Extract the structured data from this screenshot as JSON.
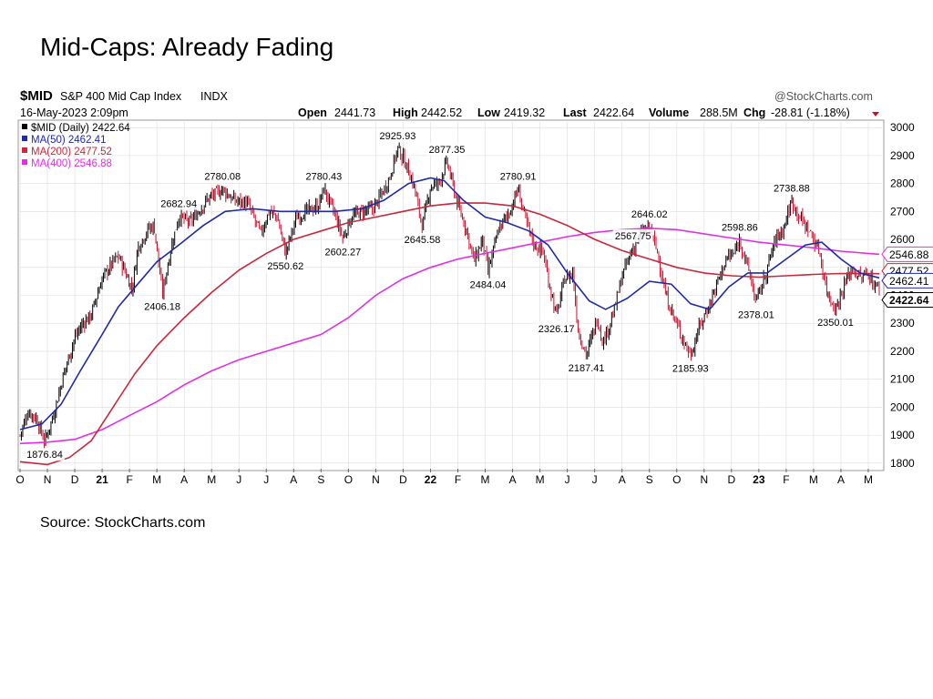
{
  "slide": {
    "title": "Mid-Caps: Already Fading",
    "source": "Source: StockCharts.com"
  },
  "header": {
    "symbol": "$MID",
    "name": "S&P 400 Mid Cap Index",
    "exchange": "INDX",
    "watermark": "@StockCharts.com",
    "date": "16-May-2023 2:09pm",
    "open_label": "Open",
    "open": "2441.73",
    "high_label": "High",
    "high": "2442.52",
    "low_label": "Low",
    "low": "2419.32",
    "last_label": "Last",
    "last": "2422.64",
    "volume_label": "Volume",
    "volume": "288.5M",
    "chg_label": "Chg",
    "chg": "-28.81 (-1.18%)"
  },
  "legend": [
    {
      "text": "$MID (Daily) 2422.64",
      "color": "#000000"
    },
    {
      "text": "MA(50) 2462.41",
      "color": "#1f2aa8"
    },
    {
      "text": "MA(200) 2477.52",
      "color": "#c8283c"
    },
    {
      "text": "MA(400) 2546.88",
      "color": "#e030e0"
    }
  ],
  "colors": {
    "up": "#000000",
    "down": "#c8102e",
    "ma50": "#1f2aa8",
    "ma200": "#c8283c",
    "ma400": "#e030e0",
    "grid": "#dddddd"
  },
  "chart_data": {
    "type": "line",
    "ylim": [
      1780,
      3020
    ],
    "yticks": [
      1800,
      1900,
      2000,
      2100,
      2200,
      2300,
      2400,
      2500,
      2600,
      2700,
      2800,
      2900,
      3000
    ],
    "xlim": [
      0,
      31.5
    ],
    "x_ticks": [
      {
        "x": 0,
        "label": "O"
      },
      {
        "x": 1,
        "label": "N"
      },
      {
        "x": 2,
        "label": "D"
      },
      {
        "x": 3,
        "label": "21"
      },
      {
        "x": 4,
        "label": "F"
      },
      {
        "x": 5,
        "label": "M"
      },
      {
        "x": 6,
        "label": "A"
      },
      {
        "x": 7,
        "label": "M"
      },
      {
        "x": 8,
        "label": "J"
      },
      {
        "x": 9,
        "label": "J"
      },
      {
        "x": 10,
        "label": "A"
      },
      {
        "x": 11,
        "label": "S"
      },
      {
        "x": 12,
        "label": "O"
      },
      {
        "x": 13,
        "label": "N"
      },
      {
        "x": 14,
        "label": "D"
      },
      {
        "x": 15,
        "label": "22"
      },
      {
        "x": 16,
        "label": "F"
      },
      {
        "x": 17,
        "label": "M"
      },
      {
        "x": 18,
        "label": "A"
      },
      {
        "x": 19,
        "label": "M"
      },
      {
        "x": 20,
        "label": "J"
      },
      {
        "x": 21,
        "label": "J"
      },
      {
        "x": 22,
        "label": "A"
      },
      {
        "x": 23,
        "label": "S"
      },
      {
        "x": 24,
        "label": "O"
      },
      {
        "x": 25,
        "label": "N"
      },
      {
        "x": 26,
        "label": "D"
      },
      {
        "x": 27,
        "label": "23"
      },
      {
        "x": 28,
        "label": "F"
      },
      {
        "x": 29,
        "label": "M"
      },
      {
        "x": 30,
        "label": "A"
      },
      {
        "x": 31,
        "label": "M"
      }
    ],
    "price_path": [
      [
        0.0,
        1900
      ],
      [
        0.3,
        1985
      ],
      [
        0.6,
        1960
      ],
      [
        0.9,
        1876.84
      ],
      [
        1.2,
        1965
      ],
      [
        1.6,
        2120
      ],
      [
        2.0,
        2250
      ],
      [
        2.3,
        2300
      ],
      [
        2.6,
        2330
      ],
      [
        3.0,
        2460
      ],
      [
        3.4,
        2520
      ],
      [
        3.6,
        2540
      ],
      [
        3.9,
        2470
      ],
      [
        4.1,
        2420
      ],
      [
        4.3,
        2570
      ],
      [
        4.7,
        2640
      ],
      [
        4.9,
        2650
      ],
      [
        5.2,
        2406.18
      ],
      [
        5.5,
        2560
      ],
      [
        5.8,
        2682.94
      ],
      [
        6.2,
        2660
      ],
      [
        6.6,
        2710
      ],
      [
        6.9,
        2750
      ],
      [
        7.1,
        2760
      ],
      [
        7.4,
        2780.08
      ],
      [
        7.8,
        2740
      ],
      [
        8.3,
        2730
      ],
      [
        8.8,
        2620
      ],
      [
        9.1,
        2700
      ],
      [
        9.4,
        2680
      ],
      [
        9.7,
        2550.62
      ],
      [
        10.1,
        2680
      ],
      [
        10.5,
        2700
      ],
      [
        10.9,
        2720
      ],
      [
        11.1,
        2780.43
      ],
      [
        11.5,
        2690
      ],
      [
        11.8,
        2602.27
      ],
      [
        12.1,
        2680
      ],
      [
        12.5,
        2700
      ],
      [
        12.9,
        2710
      ],
      [
        13.2,
        2760
      ],
      [
        13.5,
        2820
      ],
      [
        13.8,
        2925.93
      ],
      [
        14.1,
        2870
      ],
      [
        14.4,
        2790
      ],
      [
        14.7,
        2645.58
      ],
      [
        15.0,
        2790
      ],
      [
        15.3,
        2800
      ],
      [
        15.6,
        2877.35
      ],
      [
        16.0,
        2720
      ],
      [
        16.3,
        2640
      ],
      [
        16.6,
        2520
      ],
      [
        16.9,
        2600
      ],
      [
        17.1,
        2484.04
      ],
      [
        17.5,
        2640
      ],
      [
        17.9,
        2700
      ],
      [
        18.2,
        2780.91
      ],
      [
        18.5,
        2660
      ],
      [
        18.8,
        2580
      ],
      [
        19.1,
        2560
      ],
      [
        19.3,
        2460
      ],
      [
        19.6,
        2326.17
      ],
      [
        19.9,
        2460
      ],
      [
        20.2,
        2480
      ],
      [
        20.4,
        2270
      ],
      [
        20.7,
        2187.41
      ],
      [
        21.1,
        2320
      ],
      [
        21.3,
        2230
      ],
      [
        21.7,
        2340
      ],
      [
        22.0,
        2470
      ],
      [
        22.4,
        2567.75
      ],
      [
        22.7,
        2620
      ],
      [
        23.0,
        2646.02
      ],
      [
        23.3,
        2550
      ],
      [
        23.6,
        2400
      ],
      [
        23.9,
        2320
      ],
      [
        24.2,
        2250
      ],
      [
        24.5,
        2185.93
      ],
      [
        24.8,
        2280
      ],
      [
        25.2,
        2370
      ],
      [
        25.5,
        2450
      ],
      [
        25.8,
        2530
      ],
      [
        26.1,
        2550
      ],
      [
        26.3,
        2598.86
      ],
      [
        26.6,
        2500
      ],
      [
        26.9,
        2378.01
      ],
      [
        27.2,
        2460
      ],
      [
        27.6,
        2600
      ],
      [
        27.9,
        2640
      ],
      [
        28.2,
        2738.88
      ],
      [
        28.5,
        2680
      ],
      [
        28.9,
        2620
      ],
      [
        29.2,
        2560
      ],
      [
        29.5,
        2410
      ],
      [
        29.8,
        2350.01
      ],
      [
        30.1,
        2430
      ],
      [
        30.4,
        2500
      ],
      [
        30.7,
        2460
      ],
      [
        31.0,
        2480
      ],
      [
        31.2,
        2440
      ],
      [
        31.4,
        2422.64
      ]
    ],
    "ma50": [
      [
        0.0,
        1920
      ],
      [
        0.8,
        1940
      ],
      [
        1.5,
        2010
      ],
      [
        2.2,
        2130
      ],
      [
        3.0,
        2260
      ],
      [
        3.6,
        2360
      ],
      [
        4.3,
        2440
      ],
      [
        5.0,
        2520
      ],
      [
        5.8,
        2580
      ],
      [
        6.7,
        2650
      ],
      [
        7.5,
        2700
      ],
      [
        8.5,
        2710
      ],
      [
        9.5,
        2700
      ],
      [
        10.5,
        2700
      ],
      [
        11.5,
        2700
      ],
      [
        12.5,
        2710
      ],
      [
        13.3,
        2740
      ],
      [
        14.2,
        2800
      ],
      [
        15.0,
        2820
      ],
      [
        15.5,
        2810
      ],
      [
        16.2,
        2740
      ],
      [
        17.0,
        2680
      ],
      [
        17.8,
        2660
      ],
      [
        18.6,
        2630
      ],
      [
        19.3,
        2580
      ],
      [
        20.0,
        2480
      ],
      [
        20.8,
        2380
      ],
      [
        21.4,
        2350
      ],
      [
        22.2,
        2390
      ],
      [
        23.0,
        2450
      ],
      [
        23.8,
        2440
      ],
      [
        24.5,
        2370
      ],
      [
        25.2,
        2350
      ],
      [
        25.9,
        2430
      ],
      [
        26.6,
        2480
      ],
      [
        27.3,
        2480
      ],
      [
        28.0,
        2530
      ],
      [
        28.7,
        2580
      ],
      [
        29.3,
        2590
      ],
      [
        30.0,
        2530
      ],
      [
        30.7,
        2480
      ],
      [
        31.4,
        2462.41
      ]
    ],
    "ma200": [
      [
        0.0,
        1805
      ],
      [
        1.0,
        1795
      ],
      [
        1.8,
        1820
      ],
      [
        2.6,
        1880
      ],
      [
        3.4,
        2000
      ],
      [
        4.2,
        2120
      ],
      [
        5.0,
        2220
      ],
      [
        6.0,
        2320
      ],
      [
        7.0,
        2410
      ],
      [
        8.0,
        2490
      ],
      [
        9.0,
        2550
      ],
      [
        10.0,
        2600
      ],
      [
        11.0,
        2630
      ],
      [
        12.0,
        2660
      ],
      [
        13.0,
        2680
      ],
      [
        14.0,
        2700
      ],
      [
        15.0,
        2720
      ],
      [
        16.0,
        2730
      ],
      [
        17.0,
        2730
      ],
      [
        18.0,
        2720
      ],
      [
        19.0,
        2690
      ],
      [
        20.0,
        2650
      ],
      [
        21.0,
        2600
      ],
      [
        22.0,
        2560
      ],
      [
        23.0,
        2530
      ],
      [
        24.0,
        2500
      ],
      [
        25.0,
        2480
      ],
      [
        26.0,
        2470
      ],
      [
        27.0,
        2465
      ],
      [
        28.0,
        2470
      ],
      [
        29.0,
        2475
      ],
      [
        30.0,
        2478
      ],
      [
        31.4,
        2477.52
      ]
    ],
    "ma400": [
      [
        0.0,
        1870
      ],
      [
        1.0,
        1875
      ],
      [
        2.0,
        1885
      ],
      [
        3.0,
        1920
      ],
      [
        4.0,
        1970
      ],
      [
        5.0,
        2020
      ],
      [
        6.0,
        2080
      ],
      [
        7.0,
        2130
      ],
      [
        8.0,
        2170
      ],
      [
        9.0,
        2200
      ],
      [
        10.0,
        2230
      ],
      [
        11.0,
        2260
      ],
      [
        12.0,
        2320
      ],
      [
        13.0,
        2400
      ],
      [
        14.0,
        2460
      ],
      [
        15.0,
        2500
      ],
      [
        16.0,
        2530
      ],
      [
        17.0,
        2550
      ],
      [
        18.0,
        2570
      ],
      [
        19.0,
        2590
      ],
      [
        20.0,
        2610
      ],
      [
        21.0,
        2625
      ],
      [
        22.0,
        2635
      ],
      [
        23.0,
        2640
      ],
      [
        24.0,
        2635
      ],
      [
        25.0,
        2620
      ],
      [
        26.0,
        2605
      ],
      [
        27.0,
        2590
      ],
      [
        28.0,
        2580
      ],
      [
        29.0,
        2570
      ],
      [
        30.0,
        2558
      ],
      [
        31.4,
        2546.88
      ]
    ],
    "annotations": [
      {
        "x": 0.9,
        "y": 1876.84,
        "text": "1876.84",
        "pos": "below"
      },
      {
        "x": 5.2,
        "y": 2406.18,
        "text": "2406.18",
        "pos": "below"
      },
      {
        "x": 5.8,
        "y": 2682.94,
        "text": "2682.94",
        "pos": "above"
      },
      {
        "x": 7.4,
        "y": 2780.08,
        "text": "2780.08",
        "pos": "above"
      },
      {
        "x": 9.7,
        "y": 2550.62,
        "text": "2550.62",
        "pos": "below"
      },
      {
        "x": 11.1,
        "y": 2780.43,
        "text": "2780.43",
        "pos": "above"
      },
      {
        "x": 11.8,
        "y": 2602.27,
        "text": "2602.27",
        "pos": "below"
      },
      {
        "x": 13.8,
        "y": 2925.93,
        "text": "2925.93",
        "pos": "above"
      },
      {
        "x": 14.7,
        "y": 2645.58,
        "text": "2645.58",
        "pos": "below"
      },
      {
        "x": 15.6,
        "y": 2877.35,
        "text": "2877.35",
        "pos": "above"
      },
      {
        "x": 17.1,
        "y": 2484.04,
        "text": "2484.04",
        "pos": "below"
      },
      {
        "x": 18.2,
        "y": 2780.91,
        "text": "2780.91",
        "pos": "above"
      },
      {
        "x": 19.6,
        "y": 2326.17,
        "text": "2326.17",
        "pos": "below"
      },
      {
        "x": 20.7,
        "y": 2187.41,
        "text": "2187.41",
        "pos": "below"
      },
      {
        "x": 22.4,
        "y": 2567.75,
        "text": "2567.75",
        "pos": "above"
      },
      {
        "x": 23.0,
        "y": 2646.02,
        "text": "2646.02",
        "pos": "above"
      },
      {
        "x": 24.5,
        "y": 2185.93,
        "text": "2185.93",
        "pos": "below"
      },
      {
        "x": 26.3,
        "y": 2598.86,
        "text": "2598.86",
        "pos": "above"
      },
      {
        "x": 26.9,
        "y": 2378.01,
        "text": "2378.01",
        "pos": "below"
      },
      {
        "x": 28.2,
        "y": 2738.88,
        "text": "2738.88",
        "pos": "above"
      },
      {
        "x": 29.8,
        "y": 2350.01,
        "text": "2350.01",
        "pos": "below"
      }
    ],
    "right_tags": [
      {
        "y": 2546.88,
        "text": "2546.88",
        "color": "#e030e0",
        "bold": false
      },
      {
        "y": 2477.52,
        "text": "2477.52",
        "color": "#c8283c",
        "bold": false
      },
      {
        "y": 2462.41,
        "text": "2462.41",
        "color": "#1f2aa8",
        "bold": false
      },
      {
        "y": 2422.64,
        "text": "2422.64",
        "color": "#000000",
        "bold": true
      }
    ]
  }
}
